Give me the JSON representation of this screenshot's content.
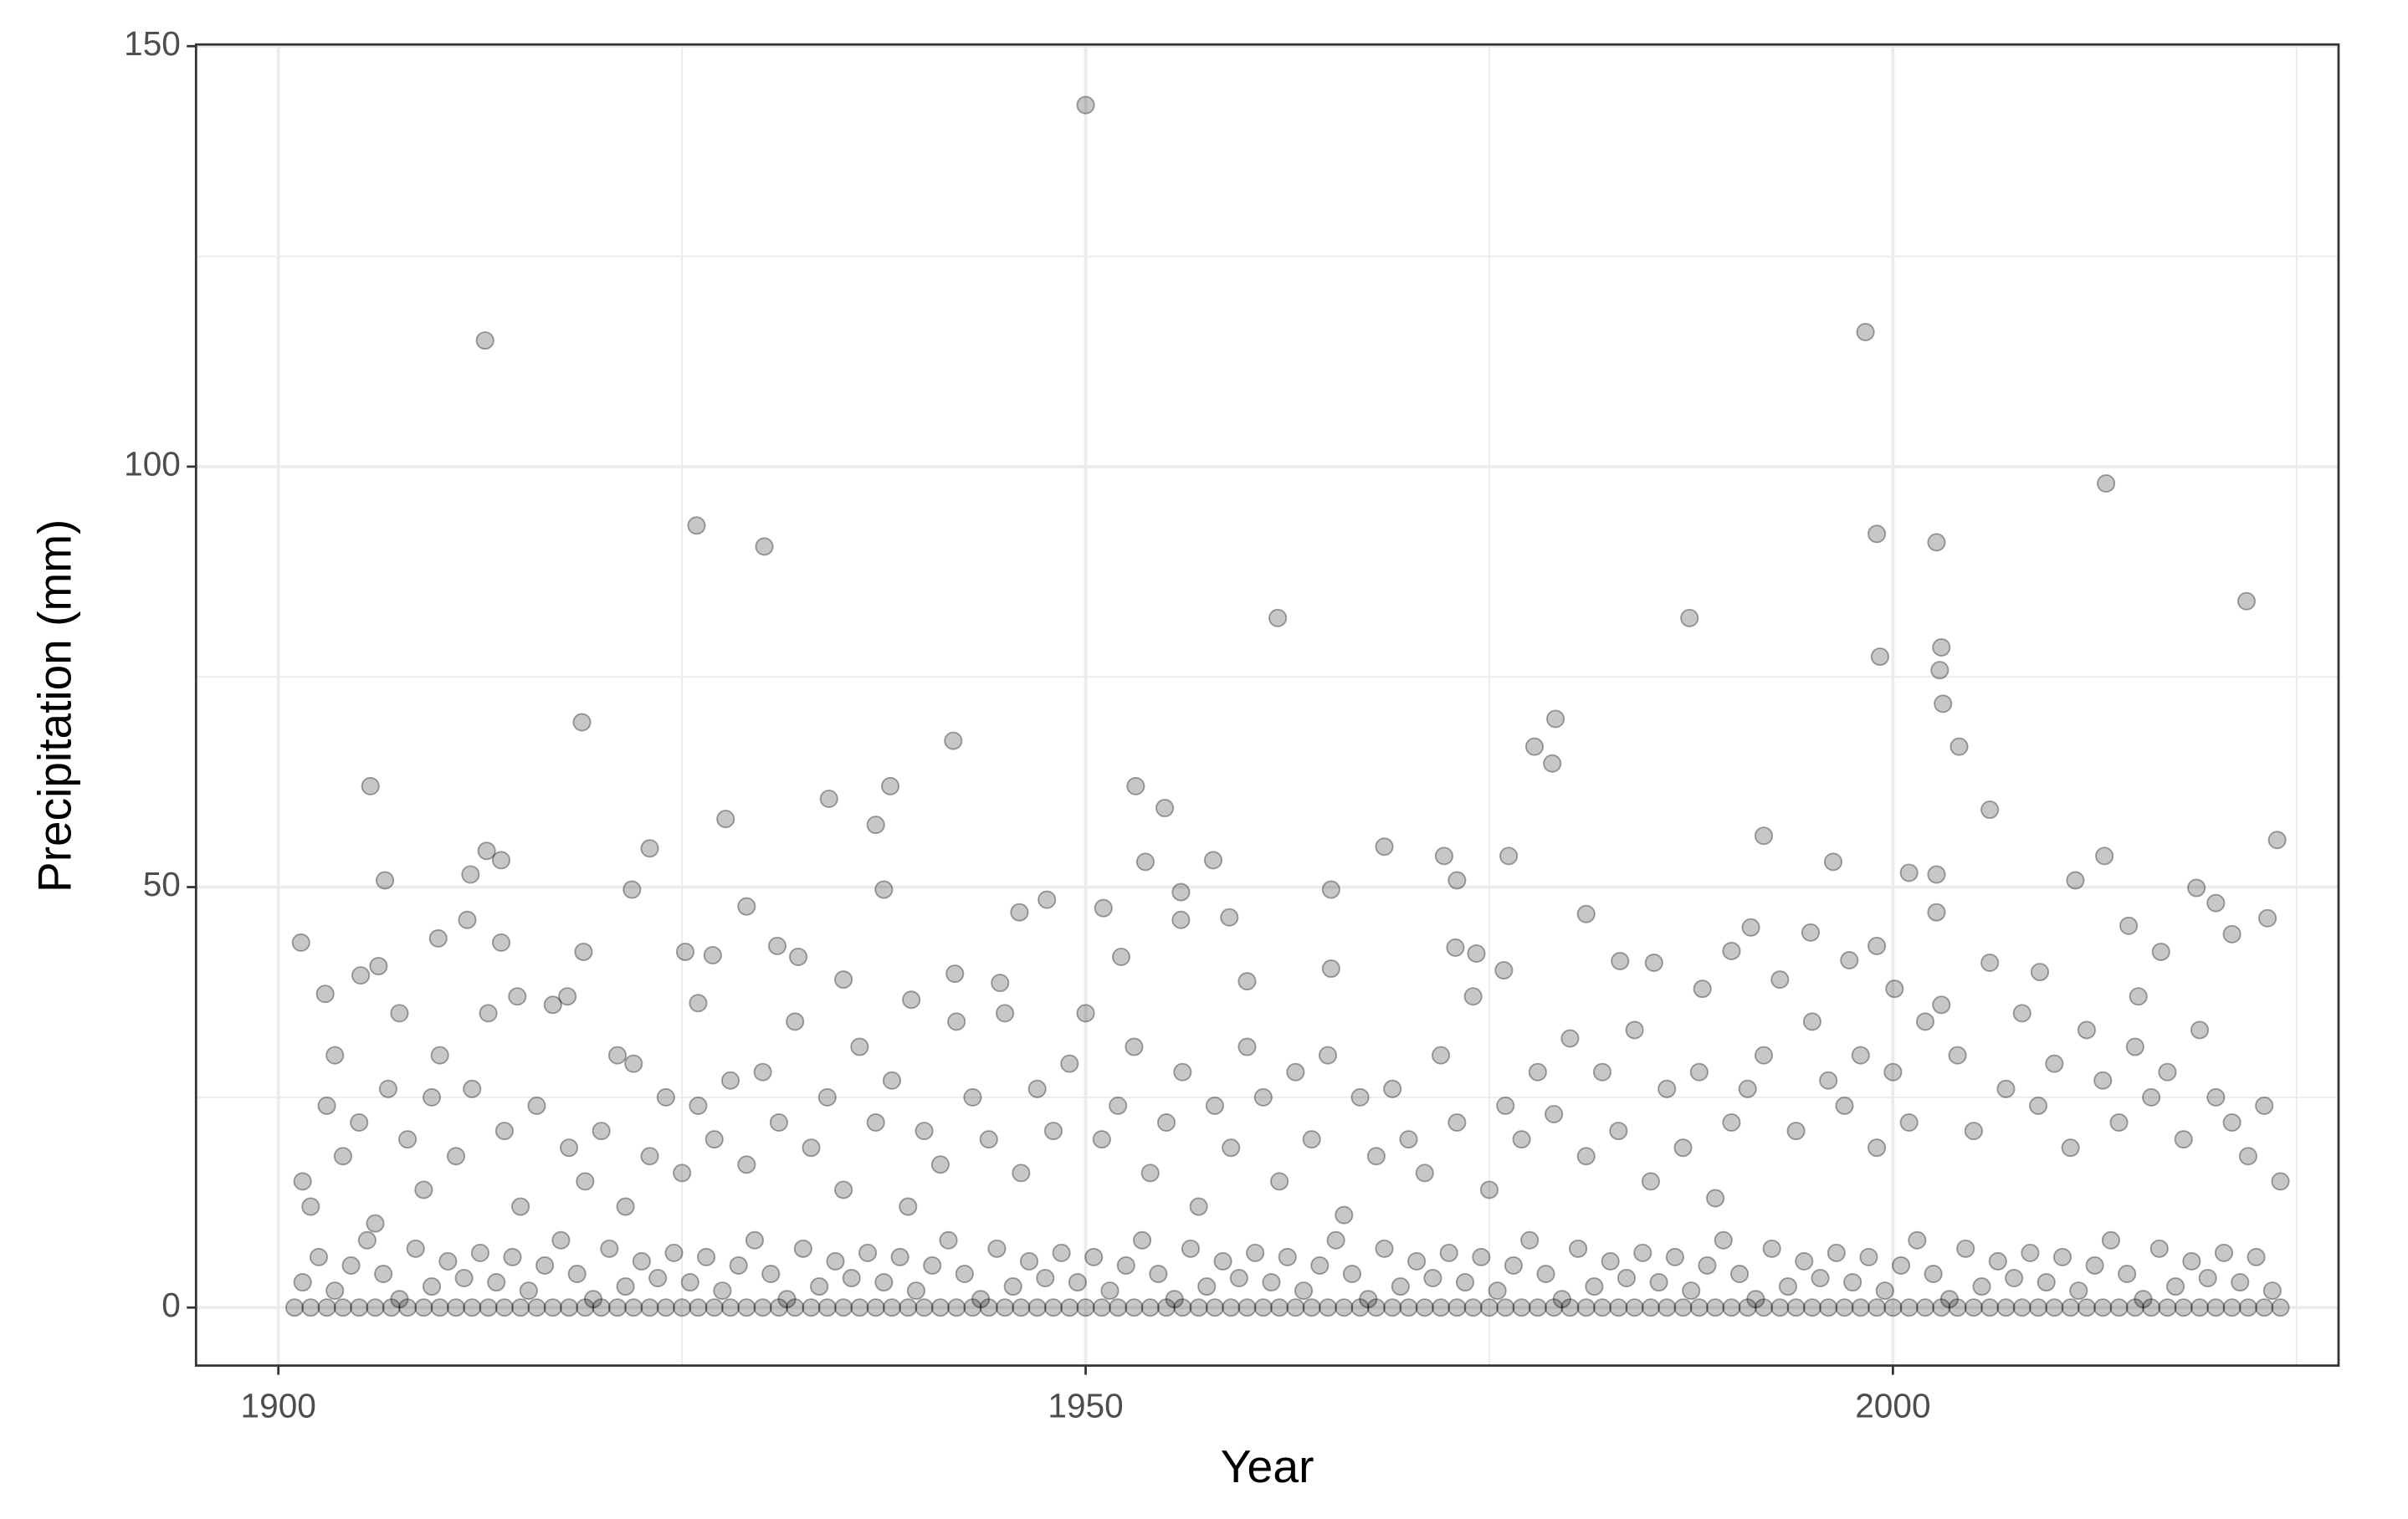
{
  "chart_data": {
    "type": "scatter",
    "x_label": "Year",
    "y_label": "Precipitation (mm)",
    "xlim": [
      1894.9,
      2027.6
    ],
    "ylim": [
      -6.9,
      150.2
    ],
    "xticks": [
      1900,
      1950,
      2000
    ],
    "yticks": [
      0,
      50,
      100,
      150
    ],
    "minor_xticks": [
      1925,
      1975,
      2025
    ],
    "minor_yticks": [
      25,
      75,
      125
    ],
    "grid": true,
    "color": "#000000",
    "alpha": 0.22,
    "x": [
      1950.0,
      1912.8,
      1998.3,
      1925.9,
      1930.1,
      2013.2,
      1999.0,
      2002.7,
      2021.9,
      1961.9,
      1987.4,
      1999.2,
      2003.0,
      2002.9,
      2003.1,
      1918.8,
      1979.1,
      1977.8,
      1978.9,
      2004.1,
      1941.8,
      1905.7,
      1937.9,
      1953.1,
      1934.1,
      1954.9,
      2006.0,
      1927.7,
      1937.0,
      1992.0,
      2023.8,
      1923.0,
      1912.9,
      1968.5,
      1913.8,
      1972.2,
      1976.2,
      2013.1,
      1957.9,
      1953.7,
      1996.3,
      2001.0,
      2002.7,
      1911.9,
      1906.6,
      1973.0,
      2011.3,
      1921.9,
      1937.5,
      1965.2,
      1955.9,
      2018.8,
      1947.6,
      1929.0,
      1951.1,
      2020.0,
      1981.0,
      1945.9,
      2002.7,
      2023.2,
      1911.7,
      1958.9,
      1955.9,
      1901.4,
      1909.9,
      1913.8,
      1930.9,
      1999.0,
      2014.6,
      1991.2,
      1994.9,
      2021.0,
      1972.9,
      1925.2,
      1926.9,
      1990.0,
      2016.6,
      1952.2,
      1974.2,
      1918.9,
      1932.2,
      1983.1,
      1985.2,
      1997.3,
      1906.2,
      1965.2,
      1905.1,
      1935.0,
      1941.9,
      1960.0,
      1975.9,
      2009.1,
      1988.2,
      2000.1,
      1902.9,
      1944.7,
      1914.8,
      1917.9,
      1939.2,
      2015.2,
      1926.0,
      1901.5,
      1902,
      1903,
      1903.5,
      1904,
      1905,
      1906,
      1906.8,
      1907.5,
      1908,
      1909,
      1909.5,
      1910,
      1911,
      1912,
      1913,
      1914,
      1915,
      1916,
      1917,
      1918,
      1919,
      1920,
      1921,
      1921.5,
      1922,
      1923,
      1924,
      1925,
      1926,
      1927,
      1928,
      1929,
      1930,
      1931,
      1932,
      1933,
      1934,
      1935,
      1936,
      1937,
      1938,
      1939,
      1940,
      1941,
      1942,
      1943,
      1944,
      1945,
      1946,
      1947,
      1948,
      1949,
      1950,
      1951,
      1952,
      1953,
      1954,
      1955,
      1956,
      1957,
      1958,
      1959,
      1960,
      1961,
      1962,
      1963,
      1964,
      1965,
      1966,
      1967,
      1968,
      1969,
      1970,
      1971,
      1972,
      1973,
      1974,
      1975,
      1976,
      1977,
      1978,
      1979,
      1980,
      1981,
      1982,
      1983,
      1984,
      1985,
      1986,
      1987,
      1988,
      1989,
      1990,
      1991,
      1992,
      1993,
      1994,
      1995,
      1996,
      1997,
      1998,
      1999,
      2000,
      2001,
      2002,
      2003,
      2004,
      2005,
      2006,
      2007,
      2008,
      2009,
      2010,
      2011,
      2012,
      2013,
      2014,
      2015,
      2016,
      2017,
      2018,
      2019,
      2020,
      2021,
      2022,
      2023,
      2024,
      1901.5,
      1902.5,
      1903.5,
      1904.5,
      1905.5,
      1906.5,
      1907.5,
      1908.5,
      1909.5,
      1910.5,
      1911.5,
      1912.5,
      1913.5,
      1914.5,
      1915.5,
      1916.5,
      1917.5,
      1918.5,
      1919.5,
      1920.5,
      1921.5,
      1922.5,
      1923.5,
      1924.5,
      1925.5,
      1926.5,
      1927.5,
      1928.5,
      1929.5,
      1930.5,
      1931.5,
      1932.5,
      1933.5,
      1934.5,
      1935.5,
      1936.5,
      1937.5,
      1938.5,
      1939.5,
      1940.5,
      1941.5,
      1942.5,
      1943.5,
      1944.5,
      1945.5,
      1946.5,
      1947.5,
      1948.5,
      1949.5,
      1950.5,
      1951.5,
      1952.5,
      1953.5,
      1954.5,
      1955.5,
      1956.5,
      1957.5,
      1958.5,
      1959.5,
      1960.5,
      1961.5,
      1962.5,
      1963.5,
      1964.5,
      1965.5,
      1966.5,
      1967.5,
      1968.5,
      1969.5,
      1970.5,
      1971.5,
      1972.5,
      1973.5,
      1974.5,
      1975.5,
      1976.5,
      1977.5,
      1978.5,
      1979.5,
      1980.5,
      1981.5,
      1982.5,
      1983.5,
      1984.5,
      1985.5,
      1986.5,
      1987.5,
      1988.5,
      1989.5,
      1990.5,
      1991.5,
      1992.5,
      1993.5,
      1994.5,
      1995.5,
      1996.5,
      1997.5,
      1998.5,
      1999.5,
      2000.5,
      2001.5,
      2002.5,
      2003.5,
      2004.5,
      2005.5,
      2006.5,
      2007.5,
      2008.5,
      2009.5,
      2010.5,
      2011.5,
      2012.5,
      2013.5,
      2014.5,
      2015.5,
      2016.5,
      2017.5,
      2018.5,
      2019.5,
      2020.5,
      2021.5,
      2022.5,
      2023.5,
      1901,
      1902,
      1903,
      1904,
      1905,
      1906,
      1907,
      1908,
      1909,
      1910,
      1911,
      1912,
      1913,
      1914,
      1915,
      1916,
      1917,
      1918,
      1919,
      1920,
      1921,
      1922,
      1923,
      1924,
      1925,
      1926,
      1927,
      1928,
      1929,
      1930,
      1931,
      1932,
      1933,
      1934,
      1935,
      1936,
      1937,
      1938,
      1939,
      1940,
      1941,
      1942,
      1943,
      1944,
      1945,
      1946,
      1947,
      1948,
      1949,
      1950,
      1951,
      1952,
      1953,
      1954,
      1955,
      1956,
      1957,
      1958,
      1959,
      1960,
      1961,
      1962,
      1963,
      1964,
      1965,
      1966,
      1967,
      1968,
      1969,
      1970,
      1971,
      1972,
      1973,
      1974,
      1975,
      1976,
      1977,
      1978,
      1979,
      1980,
      1981,
      1982,
      1983,
      1984,
      1985,
      1986,
      1987,
      1988,
      1989,
      1990,
      1991,
      1992,
      1993,
      1994,
      1995,
      1996,
      1997,
      1998,
      1999,
      2000,
      2001,
      2002,
      2003,
      2004,
      2005,
      2006,
      2007,
      2008,
      2009,
      2010,
      2011,
      2012,
      2013,
      2014,
      2015,
      2016,
      2017,
      2018,
      2019,
      2020,
      2021,
      2022,
      2023,
      2024
    ],
    "values": [
      143,
      115,
      116,
      93,
      90.5,
      98,
      92,
      91,
      84,
      82,
      82,
      77.4,
      78.5,
      75.8,
      71.8,
      69.6,
      70,
      66.7,
      64.7,
      66.7,
      67.4,
      62,
      62,
      62,
      60.5,
      59.4,
      59.2,
      58.1,
      57.4,
      56.1,
      55.6,
      54.6,
      54.3,
      54.8,
      53.2,
      53.7,
      53.7,
      53.7,
      53.2,
      53,
      53,
      51.7,
      51.5,
      51.5,
      50.8,
      50.8,
      50.8,
      49.7,
      49.7,
      49.7,
      49.4,
      49.9,
      48.5,
      47.7,
      47.5,
      48.1,
      46.8,
      47,
      47,
      46.3,
      46.1,
      46.4,
      46.1,
      43.4,
      43.9,
      43.4,
      43,
      43,
      45.4,
      45.2,
      44.6,
      44.4,
      42.8,
      42.3,
      41.9,
      42.4,
      42.3,
      41.7,
      42.1,
      42.3,
      41.7,
      41.2,
      41,
      41.3,
      40.6,
      40.3,
      39.5,
      39,
      39.7,
      38.8,
      40.1,
      39.9,
      37.9,
      37.9,
      37.3,
      38.6,
      37,
      37,
      36.6,
      37,
      36.2,
      15,
      12,
      24,
      30,
      18,
      22,
      10,
      26,
      35,
      20,
      14,
      25,
      30,
      18,
      26,
      35,
      21,
      12,
      24,
      36,
      19,
      15,
      21,
      30,
      12,
      29,
      18,
      25,
      16,
      24,
      20,
      27,
      17,
      28,
      22,
      34,
      19,
      25,
      14,
      31,
      22,
      27,
      12,
      21,
      17,
      34,
      25,
      20,
      35,
      16,
      26,
      21,
      29,
      35,
      20,
      24,
      31,
      16,
      22,
      28,
      12,
      24,
      19,
      31,
      25,
      15,
      28,
      20,
      30,
      11,
      25,
      18,
      26,
      20,
      16,
      30,
      22,
      37,
      14,
      24,
      20,
      28,
      23,
      32,
      18,
      28,
      21,
      33,
      15,
      26,
      19,
      28,
      13,
      22,
      26,
      30,
      39,
      21,
      34,
      27,
      24,
      30,
      19,
      28,
      22,
      34,
      36,
      30,
      21,
      41,
      26,
      35,
      24,
      29,
      19,
      33,
      27,
      22,
      31,
      25,
      28,
      20,
      33,
      25,
      22,
      18,
      24,
      15,
      3,
      6,
      2,
      5,
      8,
      4,
      1,
      7,
      2.5,
      5.5,
      3.5,
      6.5,
      3,
      6,
      2,
      5,
      8,
      4,
      1,
      7,
      2.5,
      5.5,
      3.5,
      6.5,
      3,
      6,
      2,
      5,
      8,
      4,
      1,
      7,
      2.5,
      5.5,
      3.5,
      6.5,
      3,
      6,
      2,
      5,
      8,
      4,
      1,
      7,
      2.5,
      5.5,
      3.5,
      6.5,
      3,
      6,
      2,
      5,
      8,
      4,
      1,
      7,
      2.5,
      5.5,
      3.5,
      6.5,
      3,
      6,
      2,
      5,
      8,
      4,
      1,
      7,
      2.5,
      5.5,
      3.5,
      6.5,
      3,
      6,
      2,
      5,
      8,
      4,
      1,
      7,
      2.5,
      5.5,
      3.5,
      6.5,
      3,
      6,
      2,
      5,
      8,
      4,
      1,
      7,
      2.5,
      5.5,
      3.5,
      6.5,
      3,
      6,
      2,
      5,
      8,
      4,
      1,
      7,
      2.5,
      5.5,
      3.5,
      6.5,
      3,
      6,
      2,
      5,
      8,
      4,
      1,
      7,
      2.5,
      5.5,
      3.5,
      6.5,
      3,
      6,
      2,
      0,
      0,
      0,
      0,
      0,
      0,
      0,
      0,
      0,
      0,
      0,
      0,
      0,
      0,
      0,
      0,
      0,
      0,
      0,
      0,
      0,
      0,
      0,
      0,
      0,
      0,
      0,
      0,
      0,
      0,
      0,
      0,
      0,
      0,
      0,
      0,
      0,
      0,
      0,
      0,
      0,
      0,
      0,
      0,
      0,
      0,
      0,
      0,
      0,
      0,
      0,
      0,
      0,
      0,
      0,
      0,
      0,
      0,
      0,
      0,
      0,
      0,
      0,
      0,
      0,
      0,
      0,
      0,
      0,
      0,
      0,
      0,
      0,
      0,
      0,
      0,
      0,
      0,
      0,
      0,
      0,
      0,
      0,
      0,
      0,
      0,
      0,
      0,
      0,
      0,
      0,
      0,
      0,
      0,
      0,
      0,
      0,
      0,
      0,
      0,
      0,
      0,
      0,
      0,
      0,
      0,
      0,
      0,
      0,
      0,
      0,
      0,
      0,
      0,
      0,
      0,
      0,
      0,
      0,
      0,
      0,
      0,
      0,
      0
    ]
  }
}
